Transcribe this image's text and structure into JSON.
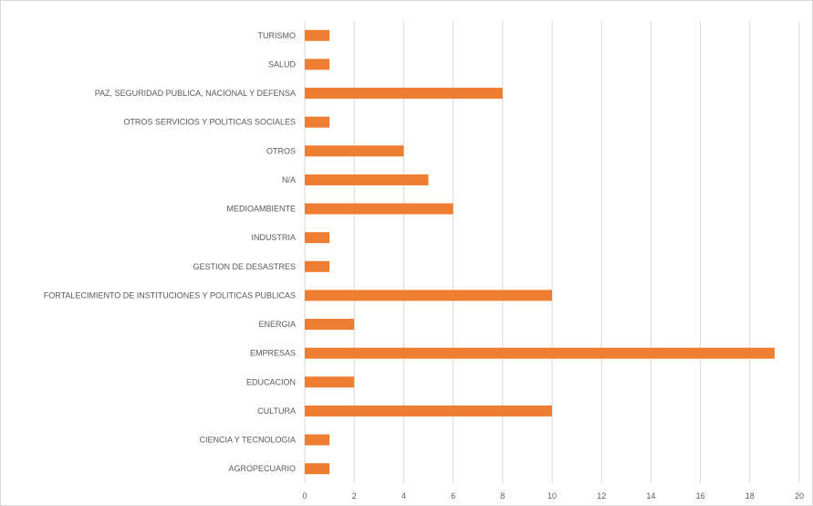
{
  "chart_data": {
    "type": "bar",
    "orientation": "horizontal",
    "title": "",
    "xlabel": "",
    "ylabel": "",
    "categories": [
      "TURISMO",
      "SALUD",
      "PAZ, SEGURIDAD PUBLICA, NACIONAL Y DEFENSA",
      "OTROS SERVICIOS Y POLITICAS SOCIALES",
      "OTROS",
      "N/A",
      "MEDIOAMBIENTE",
      "INDUSTRIA",
      "GESTION DE DESASTRES",
      "FORTALECIMIENTO DE INSTITUCIONES Y POLITICAS PUBLICAS",
      "ENERGIA",
      "EMPRESAS",
      "EDUCACION",
      "CULTURA",
      "CIENCIA Y TECNOLOGIA",
      "AGROPECUARIO"
    ],
    "values": [
      1,
      1,
      8,
      1,
      4,
      5,
      6,
      1,
      1,
      10,
      2,
      19,
      2,
      10,
      1,
      1
    ],
    "xlim": [
      0,
      20
    ],
    "xticks": [
      0,
      2,
      4,
      6,
      8,
      10,
      12,
      14,
      16,
      18,
      20
    ],
    "bar_color": "#ED7D31",
    "gridline_color": "#D9D9D9",
    "grid": true,
    "legend": "none"
  }
}
